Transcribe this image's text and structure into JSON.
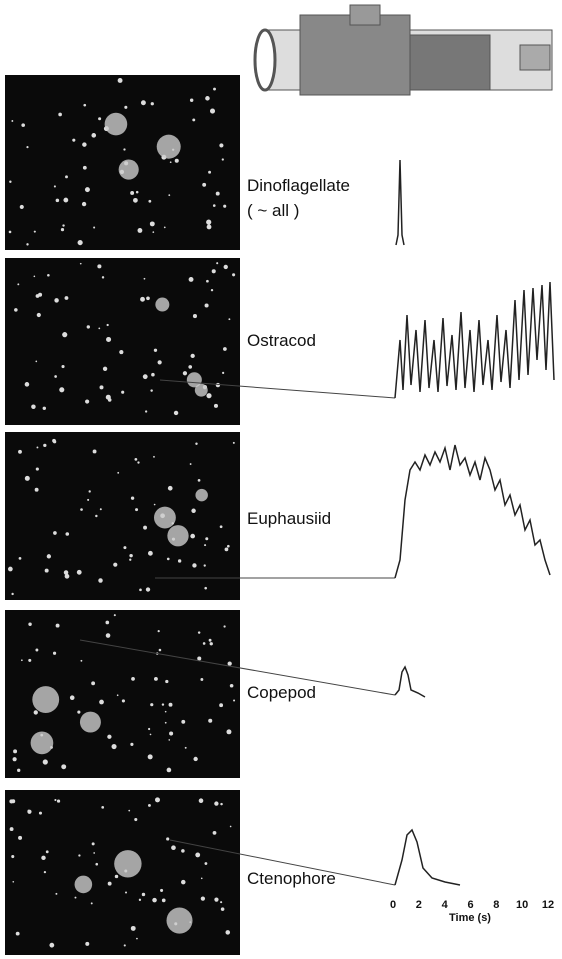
{
  "panels": [
    {
      "label": "Dinoflagellate",
      "sublabel": "( ~ all )"
    },
    {
      "label": "Ostracod"
    },
    {
      "label": "Euphausiid"
    },
    {
      "label": "Copepod"
    },
    {
      "label": "Ctenophore"
    }
  ],
  "time_axis": {
    "label": "Time (s)",
    "ticks": [
      0,
      2,
      4,
      6,
      8,
      10,
      12
    ]
  }
}
